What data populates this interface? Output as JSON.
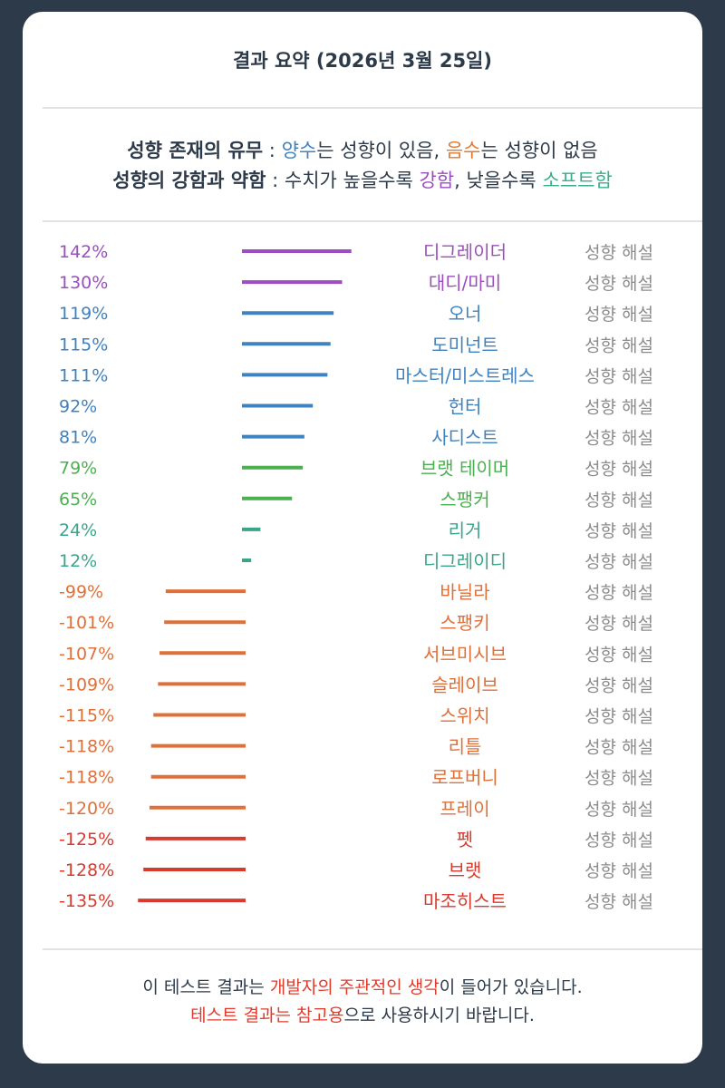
{
  "title": "결과 요약 (2026년 3월 25일)",
  "legend": {
    "line1_label": "성향 존재의 유무",
    "line1_sep": " : ",
    "line1_pos": "양수",
    "line1_mid": "는 성향이 있음, ",
    "line1_neg": "음수",
    "line1_end": "는 성향이 없음",
    "line2_label": "성향의 강함과 약함",
    "line2_sep": " : 수치가 높을수록 ",
    "line2_strong": "강함",
    "line2_mid": ", 낮을수록 ",
    "line2_soft": "소프트함"
  },
  "colors": {
    "purple": "#9c4dbf",
    "blue": "#3f82c0",
    "green": "#4caf50",
    "teal": "#3aa58a",
    "orange": "#e0703a",
    "red": "#d83a2e",
    "gray": "#8c8c8c"
  },
  "chart_data": {
    "type": "bar",
    "orientation": "horizontal",
    "value_suffix": "%",
    "link_text": "성향 해설",
    "rows": [
      {
        "label": "디그레이더",
        "value": 142,
        "color": "purple"
      },
      {
        "label": "대디/마미",
        "value": 130,
        "color": "purple"
      },
      {
        "label": "오너",
        "value": 119,
        "color": "blue"
      },
      {
        "label": "도미넌트",
        "value": 115,
        "color": "blue"
      },
      {
        "label": "마스터/미스트레스",
        "value": 111,
        "color": "blue"
      },
      {
        "label": "헌터",
        "value": 92,
        "color": "blue"
      },
      {
        "label": "사디스트",
        "value": 81,
        "color": "blue"
      },
      {
        "label": "브랫 테이머",
        "value": 79,
        "color": "green"
      },
      {
        "label": "스팽커",
        "value": 65,
        "color": "green"
      },
      {
        "label": "리거",
        "value": 24,
        "color": "teal"
      },
      {
        "label": "디그레이디",
        "value": 12,
        "color": "teal"
      },
      {
        "label": "바닐라",
        "value": -99,
        "color": "orange"
      },
      {
        "label": "스팽키",
        "value": -101,
        "color": "orange"
      },
      {
        "label": "서브미시브",
        "value": -107,
        "color": "orange"
      },
      {
        "label": "슬레이브",
        "value": -109,
        "color": "orange"
      },
      {
        "label": "스위치",
        "value": -115,
        "color": "orange"
      },
      {
        "label": "리틀",
        "value": -118,
        "color": "orange"
      },
      {
        "label": "로프버니",
        "value": -118,
        "color": "orange"
      },
      {
        "label": "프레이",
        "value": -120,
        "color": "orange"
      },
      {
        "label": "펫",
        "value": -125,
        "color": "red"
      },
      {
        "label": "브랫",
        "value": -128,
        "color": "red"
      },
      {
        "label": "마조히스트",
        "value": -135,
        "color": "red"
      }
    ]
  },
  "footer": {
    "line1_a": "이 테스트 결과는 ",
    "line1_b": "개발자의 주관적인 생각",
    "line1_c": "이 들어가 있습니다.",
    "line2_a": "테스트 결과는 참고용",
    "line2_b": "으로 사용하시기 바랍니다."
  }
}
